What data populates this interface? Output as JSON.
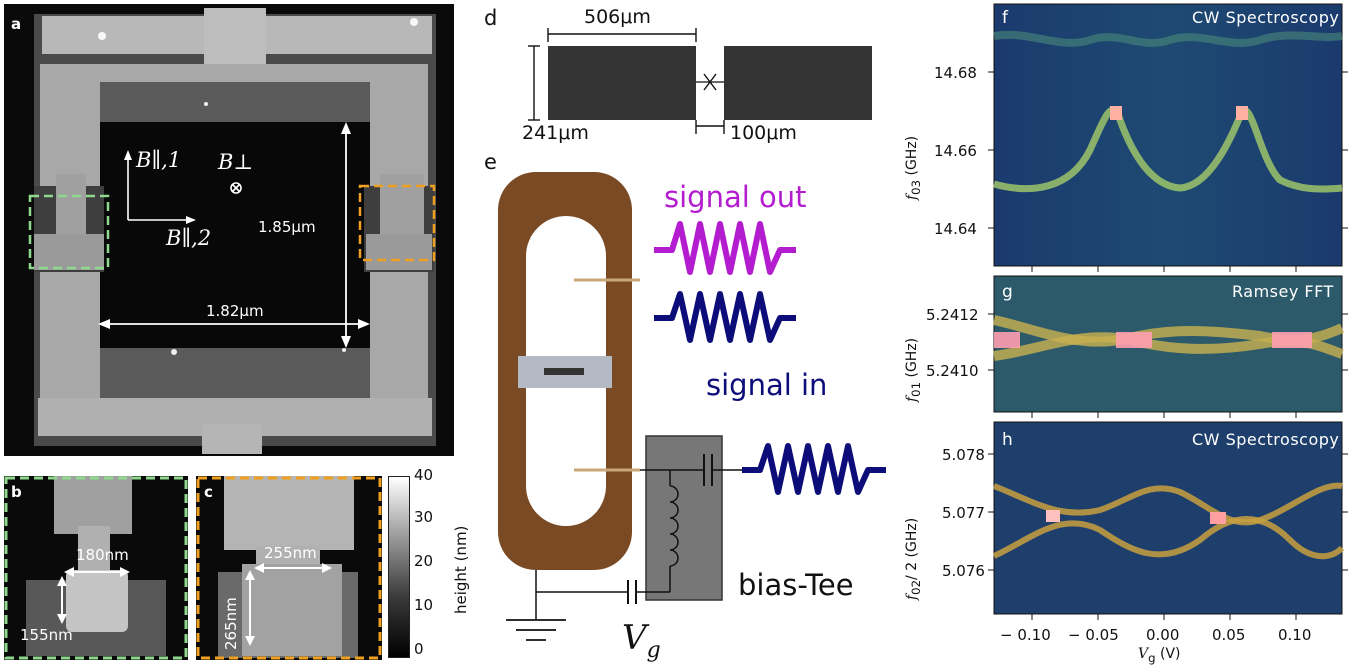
{
  "panels": {
    "a": {
      "letter": "a",
      "b_par1": "B∥,1",
      "b_perp": "B⊥",
      "b_par2": "B∥,2",
      "height_dim": "1.85μm",
      "width_dim": "1.82μm"
    },
    "b": {
      "letter": "b",
      "width": "180nm",
      "height": "155nm"
    },
    "c": {
      "letter": "c",
      "width": "255nm",
      "height": "265nm"
    },
    "colorbar": {
      "label": "height (nm)",
      "ticks": [
        "40",
        "30",
        "20",
        "10",
        "0"
      ]
    },
    "d": {
      "letter": "d",
      "length": "506μm",
      "height": "241μm",
      "gap": "100μm"
    },
    "e": {
      "letter": "e",
      "signal_out": "signal out",
      "signal_in": "signal in",
      "bias_tee": "bias-Tee",
      "vg": "V",
      "vg_sub": "g"
    },
    "f": {
      "letter": "f",
      "title": "CW Spectroscopy",
      "ylabel_main": "f",
      "ylabel_sub": "03",
      "ylabel_unit": " (GHz)",
      "yticks": [
        "14.68",
        "14.66",
        "14.64"
      ]
    },
    "g": {
      "letter": "g",
      "title": "Ramsey FFT",
      "ylabel_main": "f",
      "ylabel_sub": "01",
      "ylabel_unit": " (GHz)",
      "yticks": [
        "5.2412",
        "5.2410"
      ]
    },
    "h": {
      "letter": "h",
      "title": "CW Spectroscopy",
      "ylabel_main": "f",
      "ylabel_sub": "02",
      "ylabel_unit": "/ 2 (GHz)",
      "yticks": [
        "5.078",
        "5.077",
        "5.076"
      ],
      "xticks": [
        "− 0.10",
        "− 0.05",
        "0.00",
        "0.05",
        "0.10"
      ],
      "xlabel_main": "V",
      "xlabel_sub": "g",
      "xlabel_unit": " (V)"
    }
  },
  "colors": {
    "resonator": "#7a4a24",
    "signal_out": "#b31ccf",
    "signal_in": "#0d0d7a",
    "bias_box": "#777777",
    "green_box": "#8fd98f",
    "orange_box": "#f0a020"
  }
}
